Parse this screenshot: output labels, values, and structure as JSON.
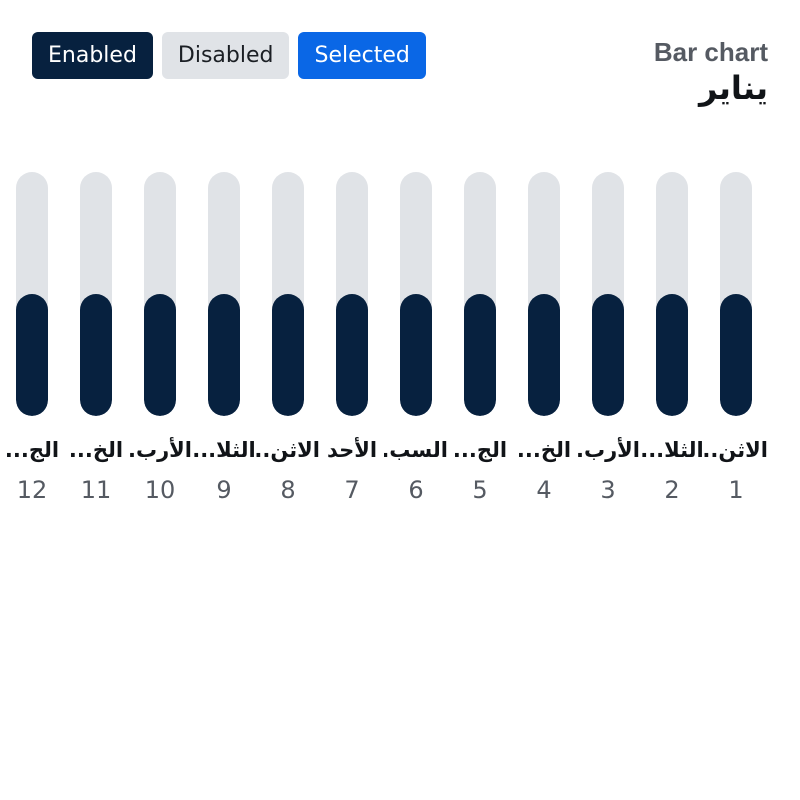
{
  "buttons": {
    "enabled_label": "Enabled",
    "disabled_label": "Disabled",
    "selected_label": "Selected"
  },
  "header": {
    "chart_label": "Bar chart",
    "title": "يناير"
  },
  "colors": {
    "fill": "#07213f",
    "track": "#e0e3e7",
    "selected_accent": "#0a67e6"
  },
  "chart_data": {
    "type": "bar",
    "title": "يناير",
    "direction": "rtl",
    "ylim": [
      0,
      1
    ],
    "bars": [
      {
        "index": "1",
        "day_label": "الاثن..",
        "value": 0.5
      },
      {
        "index": "2",
        "day_label": "الثلا...",
        "value": 0.5
      },
      {
        "index": "3",
        "day_label": "الأرب.",
        "value": 0.5
      },
      {
        "index": "4",
        "day_label": "الخ...",
        "value": 0.5
      },
      {
        "index": "5",
        "day_label": "الج...",
        "value": 0.5
      },
      {
        "index": "6",
        "day_label": "السب.",
        "value": 0.5
      },
      {
        "index": "7",
        "day_label": "الأحد",
        "value": 0.5
      },
      {
        "index": "8",
        "day_label": "الاثن..",
        "value": 0.5
      },
      {
        "index": "9",
        "day_label": "الثلا...",
        "value": 0.5
      },
      {
        "index": "10",
        "day_label": "الأرب.",
        "value": 0.5
      },
      {
        "index": "11",
        "day_label": "الخ...",
        "value": 0.5
      },
      {
        "index": "12",
        "day_label": "الج...",
        "value": 0.5
      }
    ]
  }
}
